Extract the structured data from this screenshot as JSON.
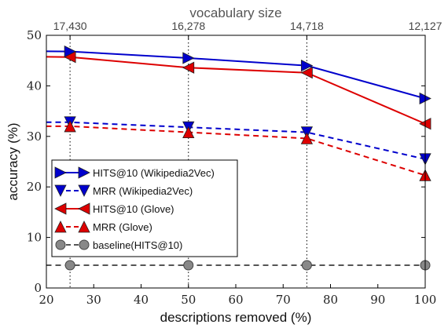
{
  "chart_data": {
    "type": "line",
    "xlabel": "descriptions removed (%)",
    "ylabel": "accuracy (%)",
    "top_axis_label": "vocabulary size",
    "xlim": [
      20,
      100
    ],
    "ylim": [
      0,
      50
    ],
    "x_ticks": [
      20,
      30,
      40,
      50,
      60,
      70,
      80,
      90,
      100
    ],
    "y_ticks": [
      0,
      10,
      20,
      30,
      40,
      50
    ],
    "top_ticks": [
      {
        "x": 25,
        "label": "17,430"
      },
      {
        "x": 50,
        "label": "16,278"
      },
      {
        "x": 75,
        "label": "14,718"
      },
      {
        "x": 100,
        "label": "12,127"
      }
    ],
    "vertical_guides": [
      25,
      50,
      75,
      100
    ],
    "legend_position": "center-left",
    "series": [
      {
        "name": "HITS@10 (Wikipedia2Vec)",
        "color": "#0000cc",
        "dash": "solid",
        "marker": "triangle-right",
        "x": [
          0,
          25,
          50,
          75,
          100
        ],
        "y": [
          47.0,
          46.8,
          45.5,
          44.0,
          37.5
        ]
      },
      {
        "name": "MRR (Wikipedia2Vec)",
        "color": "#0000cc",
        "dash": "dashed",
        "marker": "triangle-down",
        "x": [
          0,
          25,
          50,
          75,
          100
        ],
        "y": [
          32.8,
          32.8,
          31.8,
          30.8,
          25.5
        ]
      },
      {
        "name": "HITS@10 (Glove)",
        "color": "#dd0000",
        "dash": "solid",
        "marker": "triangle-left",
        "x": [
          0,
          25,
          50,
          75,
          100
        ],
        "y": [
          46.0,
          45.7,
          43.6,
          42.6,
          32.5
        ]
      },
      {
        "name": "MRR (Glove)",
        "color": "#dd0000",
        "dash": "dashed",
        "marker": "triangle-up",
        "x": [
          0,
          25,
          50,
          75,
          100
        ],
        "y": [
          32.0,
          32.0,
          30.8,
          29.6,
          22.3
        ]
      },
      {
        "name": "baseline(HITS@10)",
        "color": "#555555",
        "dash": "dashed",
        "marker": "circle",
        "x": [
          0,
          25,
          50,
          75,
          100
        ],
        "y": [
          4.5,
          4.5,
          4.5,
          4.5,
          4.5
        ]
      }
    ]
  }
}
